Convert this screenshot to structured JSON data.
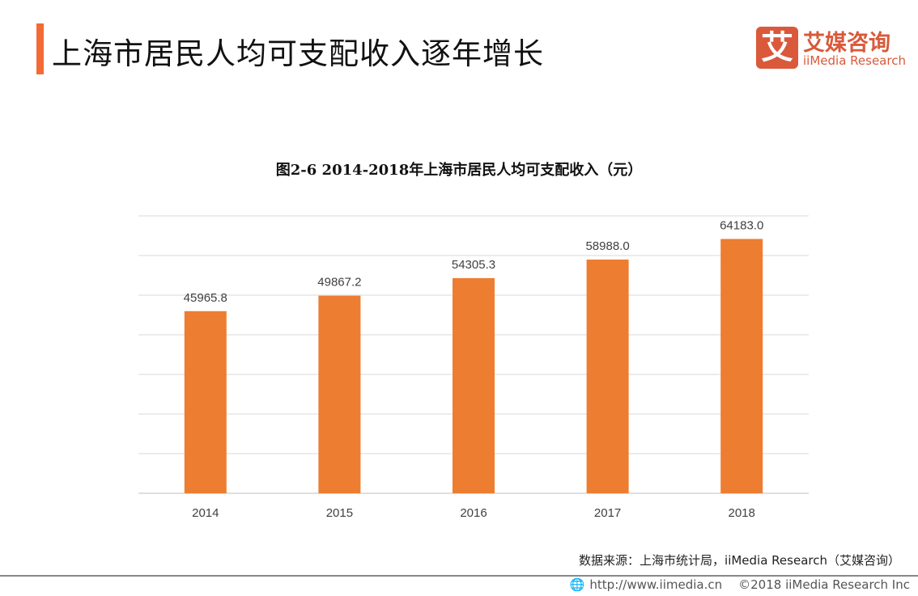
{
  "header": {
    "title": "上海市居民人均可支配收入逐年增长"
  },
  "logo": {
    "mark": "艾",
    "cn": "艾媒咨询",
    "en": "iiMedia Research"
  },
  "chart_data": {
    "type": "bar",
    "title": "图2-6 2014-2018年上海市居民人均可支配收入（元）",
    "categories": [
      "2014",
      "2015",
      "2016",
      "2017",
      "2018"
    ],
    "values": [
      45965.8,
      49867.2,
      54305.3,
      58988.0,
      64183.0
    ],
    "labels": [
      "45965.8",
      "49867.2",
      "54305.3",
      "58988.0",
      "64183.0"
    ],
    "ylim": [
      0,
      70000
    ],
    "ytick_step": 10000,
    "grid": true,
    "bar_color": "#ed7d31",
    "grid_color": "#d9d9d9"
  },
  "source": "数据来源：上海市统计局，iiMedia Research（艾媒咨询）",
  "footer": {
    "icon": "globe-icon",
    "url": "http://www.iimedia.cn",
    "copyright": "©2018  iiMedia Research  Inc"
  }
}
